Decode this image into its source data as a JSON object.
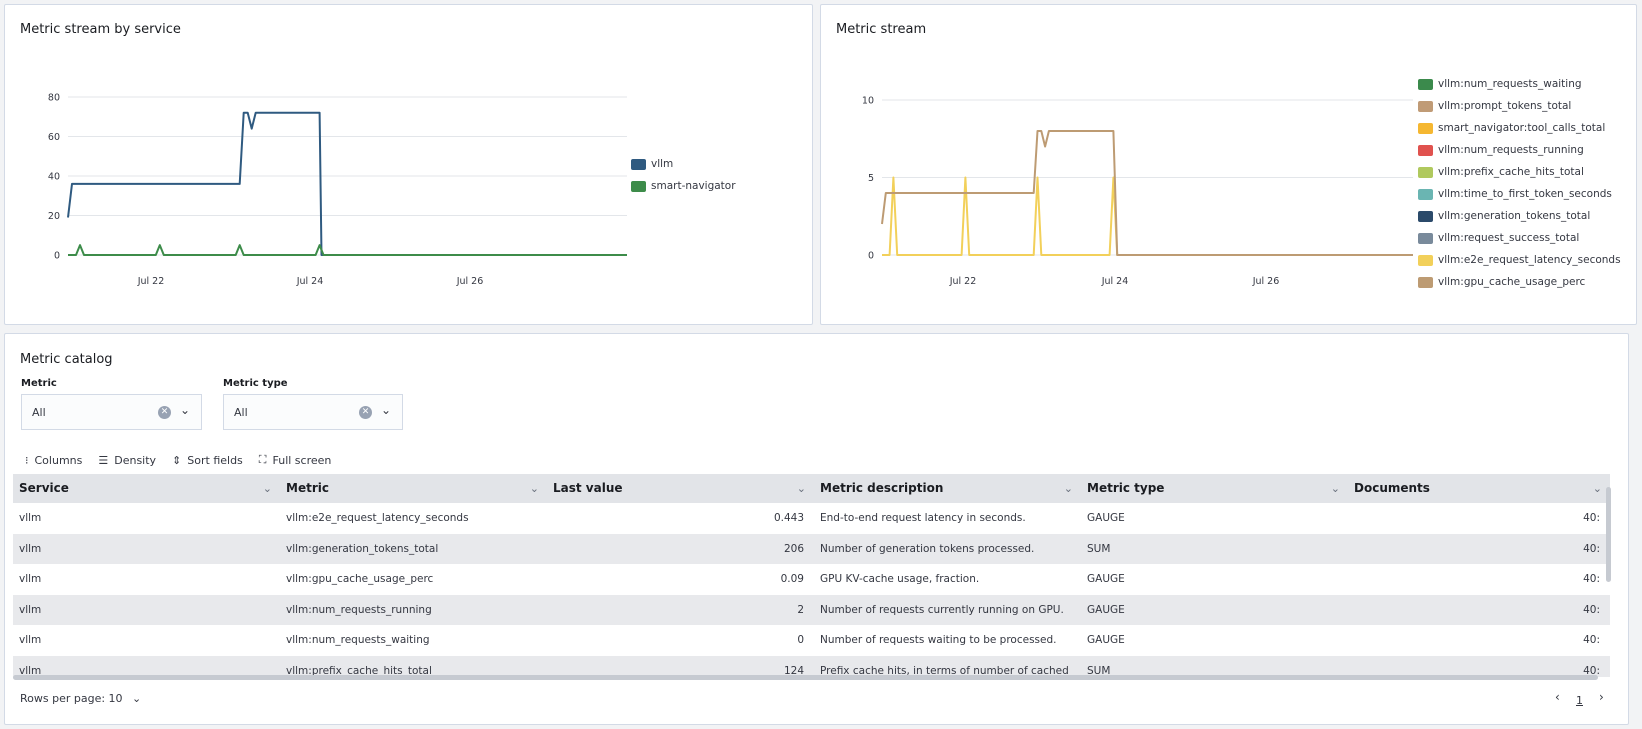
{
  "chart_left": {
    "title": "Metric stream by service",
    "chart_data": {
      "type": "line",
      "x_ticks": [
        "Jul 22",
        "Jul 24",
        "Jul 26"
      ],
      "y_ticks": [
        "0",
        "20",
        "40",
        "60",
        "80"
      ],
      "ylim": [
        0,
        80
      ],
      "series": [
        {
          "name": "vllm",
          "color": "#2f5a80",
          "points": [
            [
              0,
              19
            ],
            [
              0.1,
              36
            ],
            [
              4.3,
              36
            ],
            [
              4.4,
              72
            ],
            [
              4.5,
              72
            ],
            [
              4.6,
              64
            ],
            [
              4.7,
              72
            ],
            [
              6.3,
              72
            ],
            [
              6.35,
              0
            ],
            [
              14,
              0
            ]
          ]
        },
        {
          "name": "smart-navigator",
          "color": "#3d8c4a",
          "points": [
            [
              0,
              0
            ],
            [
              0.2,
              0
            ],
            [
              0.3,
              5
            ],
            [
              0.4,
              0
            ],
            [
              2.2,
              0
            ],
            [
              2.3,
              5
            ],
            [
              2.4,
              0
            ],
            [
              4.2,
              0
            ],
            [
              4.3,
              5
            ],
            [
              4.4,
              0
            ],
            [
              6.2,
              0
            ],
            [
              6.3,
              5
            ],
            [
              6.4,
              0
            ],
            [
              14,
              0
            ]
          ]
        }
      ]
    }
  },
  "chart_right": {
    "title": "Metric stream",
    "chart_data": {
      "type": "line",
      "x_ticks": [
        "Jul 22",
        "Jul 24",
        "Jul 26"
      ],
      "y_ticks": [
        "0",
        "5",
        "10"
      ],
      "ylim": [
        0,
        12
      ],
      "series": [
        {
          "name": "vllm:num_requests_waiting",
          "color": "#3b8a4c",
          "points": []
        },
        {
          "name": "vllm:prompt_tokens_total",
          "color": "#c09b76",
          "points": []
        },
        {
          "name": "smart_navigator:tool_calls_total",
          "color": "#f5b731",
          "points": []
        },
        {
          "name": "vllm:num_requests_running",
          "color": "#e0524e",
          "points": []
        },
        {
          "name": "vllm:prefix_cache_hits_total",
          "color": "#b0c95e",
          "points": []
        },
        {
          "name": "vllm:time_to_first_token_seconds",
          "color": "#6ab5b2",
          "points": []
        },
        {
          "name": "vllm:generation_tokens_total",
          "color": "#2b4a6a",
          "points": []
        },
        {
          "name": "vllm:request_success_total",
          "color": "#798a9b",
          "points": []
        },
        {
          "name": "vllm:e2e_request_latency_seconds",
          "color": "#f2d05a",
          "points": [
            [
              0,
              0
            ],
            [
              0.2,
              0
            ],
            [
              0.3,
              5
            ],
            [
              0.4,
              0
            ],
            [
              2.1,
              0
            ],
            [
              2.2,
              5
            ],
            [
              2.3,
              0
            ],
            [
              4.0,
              0
            ],
            [
              4.1,
              5
            ],
            [
              4.2,
              0
            ],
            [
              6.0,
              0
            ],
            [
              6.1,
              5
            ],
            [
              6.2,
              0
            ],
            [
              14,
              0
            ]
          ]
        },
        {
          "name": "vllm:gpu_cache_usage_perc",
          "color": "#bd9b73",
          "points": [
            [
              0,
              2
            ],
            [
              0.1,
              4
            ],
            [
              4.0,
              4
            ],
            [
              4.1,
              8
            ],
            [
              4.2,
              8
            ],
            [
              4.3,
              7
            ],
            [
              4.4,
              8
            ],
            [
              6.1,
              8
            ],
            [
              6.2,
              0
            ],
            [
              14,
              0
            ]
          ]
        }
      ]
    }
  },
  "catalog": {
    "title": "Metric catalog",
    "filters": [
      {
        "label": "Metric",
        "value": "All"
      },
      {
        "label": "Metric type",
        "value": "All"
      }
    ],
    "toolbar": {
      "columns": "Columns",
      "density": "Density",
      "sort": "Sort fields",
      "fullscreen": "Full screen"
    },
    "columns": [
      "Service",
      "Metric",
      "Last value",
      "Metric description",
      "Metric type",
      "Documents"
    ],
    "rows": [
      [
        "vllm",
        "vllm:e2e_request_latency_seconds",
        "0.443",
        "End-to-end request latency in seconds.",
        "GAUGE",
        "40:"
      ],
      [
        "vllm",
        "vllm:generation_tokens_total",
        "206",
        "Number of generation tokens processed.",
        "SUM",
        "40:"
      ],
      [
        "vllm",
        "vllm:gpu_cache_usage_perc",
        "0.09",
        "GPU KV-cache usage, fraction.",
        "GAUGE",
        "40:"
      ],
      [
        "vllm",
        "vllm:num_requests_running",
        "2",
        "Number of requests currently running on GPU.",
        "GAUGE",
        "40:"
      ],
      [
        "vllm",
        "vllm:num_requests_waiting",
        "0",
        "Number of requests waiting to be processed.",
        "GAUGE",
        "40:"
      ],
      [
        "vllm",
        "vllm:prefix_cache_hits_total",
        "124",
        "Prefix cache hits, in terms of number of cached",
        "SUM",
        "40:"
      ]
    ],
    "rows_per_page": "Rows per page: 10",
    "current_page": "1"
  }
}
